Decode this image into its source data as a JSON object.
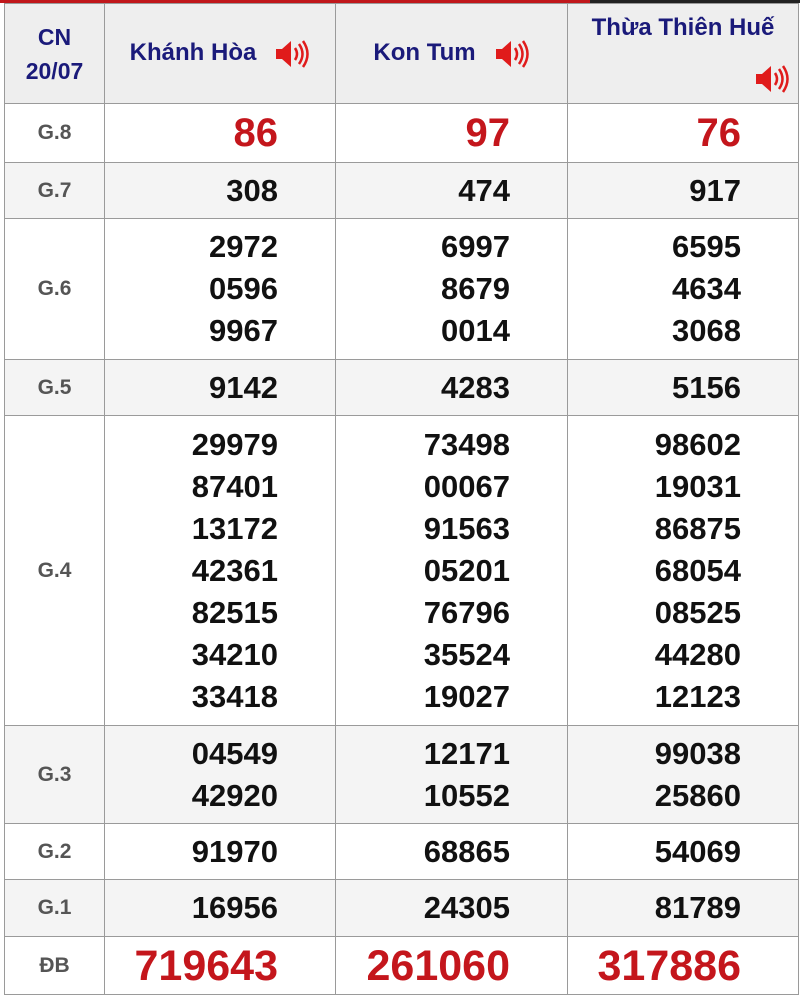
{
  "header": {
    "day": "CN",
    "date": "20/07",
    "provinces": [
      "Khánh Hòa",
      "Kon Tum",
      "Thừa Thiên Huế"
    ]
  },
  "colors": {
    "accent_red": "#c4161c",
    "header_text": "#1a1a7a"
  },
  "icons": {
    "speaker": "speaker-icon"
  },
  "rows": [
    {
      "label": "G.8",
      "cols": [
        [
          "86"
        ],
        [
          "97"
        ],
        [
          "76"
        ]
      ]
    },
    {
      "label": "G.7",
      "cols": [
        [
          "308"
        ],
        [
          "474"
        ],
        [
          "917"
        ]
      ]
    },
    {
      "label": "G.6",
      "cols": [
        [
          "2972",
          "0596",
          "9967"
        ],
        [
          "6997",
          "8679",
          "0014"
        ],
        [
          "6595",
          "4634",
          "3068"
        ]
      ]
    },
    {
      "label": "G.5",
      "cols": [
        [
          "9142"
        ],
        [
          "4283"
        ],
        [
          "5156"
        ]
      ]
    },
    {
      "label": "G.4",
      "cols": [
        [
          "29979",
          "87401",
          "13172",
          "42361",
          "82515",
          "34210",
          "33418"
        ],
        [
          "73498",
          "00067",
          "91563",
          "05201",
          "76796",
          "35524",
          "19027"
        ],
        [
          "98602",
          "19031",
          "86875",
          "68054",
          "08525",
          "44280",
          "12123"
        ]
      ]
    },
    {
      "label": "G.3",
      "cols": [
        [
          "04549",
          "42920"
        ],
        [
          "12171",
          "10552"
        ],
        [
          "99038",
          "25860"
        ]
      ]
    },
    {
      "label": "G.2",
      "cols": [
        [
          "91970"
        ],
        [
          "68865"
        ],
        [
          "54069"
        ]
      ]
    },
    {
      "label": "G.1",
      "cols": [
        [
          "16956"
        ],
        [
          "24305"
        ],
        [
          "81789"
        ]
      ]
    },
    {
      "label": "ĐB",
      "cols": [
        [
          "719643"
        ],
        [
          "261060"
        ],
        [
          "317886"
        ]
      ]
    }
  ]
}
